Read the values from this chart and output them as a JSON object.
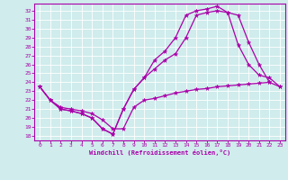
{
  "xlabel": "Windchill (Refroidissement éolien,°C)",
  "xlim": [
    -0.5,
    23.5
  ],
  "ylim": [
    17.5,
    32.8
  ],
  "yticks": [
    18,
    19,
    20,
    21,
    22,
    23,
    24,
    25,
    26,
    27,
    28,
    29,
    30,
    31,
    32
  ],
  "xticks": [
    0,
    1,
    2,
    3,
    4,
    5,
    6,
    7,
    8,
    9,
    10,
    11,
    12,
    13,
    14,
    15,
    16,
    17,
    18,
    19,
    20,
    21,
    22,
    23
  ],
  "line_color": "#aa00aa",
  "bg_color": "#d0ecec",
  "grid_color": "#ffffff",
  "lines": [
    {
      "x": [
        0,
        1,
        2,
        3,
        4,
        5,
        6,
        7,
        8,
        9,
        10,
        11,
        12,
        13,
        14,
        15,
        16,
        17,
        18,
        19,
        20,
        21,
        22,
        23
      ],
      "y": [
        23.5,
        22.0,
        21.2,
        21.0,
        20.8,
        20.5,
        19.8,
        18.8,
        18.8,
        21.2,
        22.0,
        22.2,
        22.5,
        22.8,
        23.0,
        23.2,
        23.3,
        23.5,
        23.6,
        23.7,
        23.8,
        23.9,
        24.0,
        23.5
      ]
    },
    {
      "x": [
        0,
        1,
        2,
        3,
        4,
        5,
        6,
        7,
        8,
        9,
        10,
        11,
        12,
        13,
        14,
        15,
        16,
        17,
        18,
        19,
        20,
        21,
        22
      ],
      "y": [
        23.5,
        22.0,
        21.0,
        20.8,
        20.5,
        20.0,
        18.8,
        18.2,
        21.0,
        23.2,
        24.5,
        25.5,
        26.5,
        27.2,
        29.0,
        31.5,
        31.8,
        32.0,
        31.8,
        31.5,
        28.5,
        26.0,
        24.0
      ]
    },
    {
      "x": [
        0,
        1,
        2,
        3,
        4,
        5,
        6,
        7,
        8,
        9,
        10,
        11,
        12,
        13,
        14,
        15,
        16,
        17,
        18,
        19,
        20,
        21,
        22,
        23
      ],
      "y": [
        23.5,
        22.0,
        21.0,
        20.8,
        20.5,
        20.0,
        18.8,
        18.2,
        21.0,
        23.2,
        24.5,
        26.5,
        27.5,
        29.0,
        31.5,
        32.0,
        32.2,
        32.5,
        31.8,
        28.2,
        26.0,
        24.8,
        24.5,
        23.5
      ]
    }
  ]
}
